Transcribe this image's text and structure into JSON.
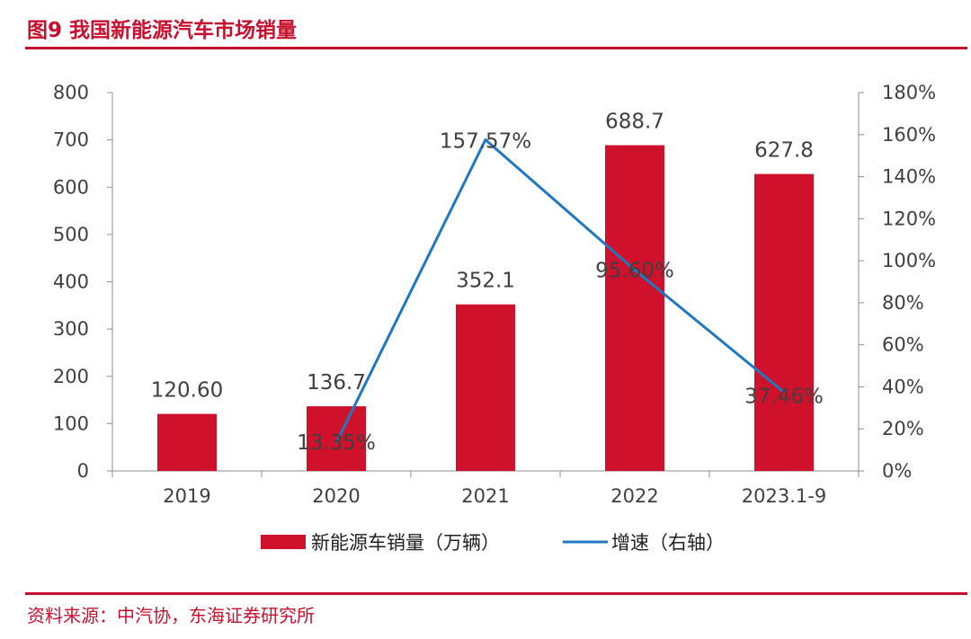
{
  "figure": {
    "title": "图9  我国新能源汽车市场销量",
    "source": "资料来源：中汽协，东海证券研究所"
  },
  "colors": {
    "accent": "#c8102e",
    "bar": "#d0112b",
    "line": "#1f78c1",
    "axis": "#8c8c8c",
    "text": "#404040"
  },
  "chart_data": {
    "type": "bar",
    "categories": [
      "2019",
      "2020",
      "2021",
      "2022",
      "2023.1-9"
    ],
    "series": [
      {
        "name": "新能源车销量（万辆）",
        "type": "bar",
        "axis": "left",
        "values": [
          120.6,
          136.7,
          352.1,
          688.7,
          627.8
        ],
        "labels": [
          "120.60",
          "136.7",
          "352.1",
          "688.7",
          "627.8"
        ]
      },
      {
        "name": "增速（右轴）",
        "type": "line",
        "axis": "right",
        "values": [
          null,
          13.35,
          157.57,
          95.6,
          37.46
        ],
        "labels": [
          "",
          "13.35%",
          "157.57%",
          "95.60%",
          "37.46%"
        ]
      }
    ],
    "left_axis": {
      "ylim": [
        0,
        800
      ],
      "ticks": [
        0,
        100,
        200,
        300,
        400,
        500,
        600,
        700,
        800
      ],
      "tick_labels": [
        "0",
        "100",
        "200",
        "300",
        "400",
        "500",
        "600",
        "700",
        "800"
      ]
    },
    "right_axis": {
      "ylim": [
        0,
        180
      ],
      "ticks": [
        0,
        20,
        40,
        60,
        80,
        100,
        120,
        140,
        160,
        180
      ],
      "tick_labels": [
        "0%",
        "20%",
        "40%",
        "60%",
        "80%",
        "100%",
        "120%",
        "140%",
        "160%",
        "180%"
      ]
    },
    "grid": false,
    "legend": "bottom"
  }
}
